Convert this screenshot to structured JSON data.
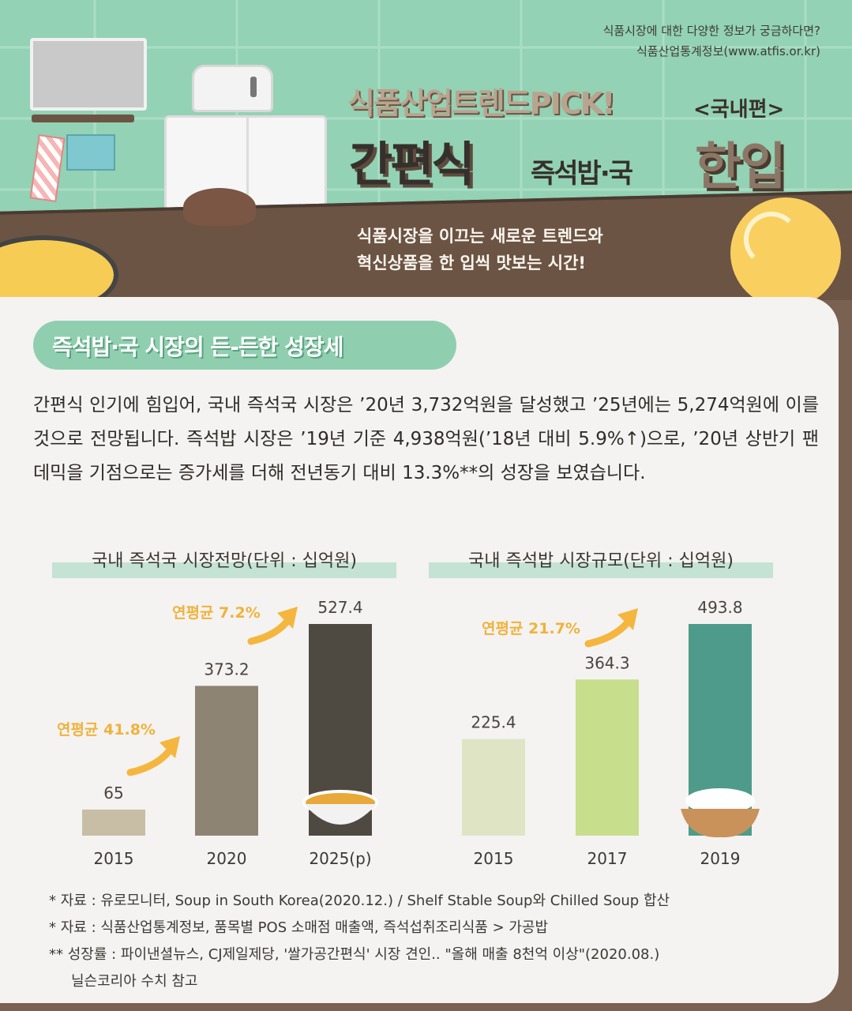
{
  "header": {
    "source_note_line1": "식품시장에 대한 다양한 정보가 궁금하다면?",
    "source_note_line2": "식품산업통계정보(www.atfis.or.kr)",
    "series_title": "식품산업트렌드PICK!",
    "edition": "<국내편>",
    "main_title_1": "간편식",
    "main_title_2": "즉석밥·국",
    "main_title_3": "한입",
    "tagline_line1": "식품시장을 이끄는 새로운 트렌드와",
    "tagline_line2": "혁신상품을 한 입씩 맛보는 시간!"
  },
  "section": {
    "title": "즉석밥·국 시장의 든-든한 성장세",
    "body": "간편식 인기에 힘입어, 국내 즉석국 시장은 ’20년 3,732억원을 달성했고 ’25년에는 5,274억원에 이를 것으로 전망됩니다. 즉석밥 시장은 ’19년 기준 4,938억원(’18년 대비 5.9%↑)으로, ’20년 상반기 팬데믹을 기점으로는 증가세를 더해 전년동기 대비 13.3%**의 성장을 보였습니다."
  },
  "chart_data": [
    {
      "type": "bar",
      "title": "국내 즉석국 시장전망(단위 : 십억원)",
      "categories": [
        "2015",
        "2020",
        "2025(p)"
      ],
      "values": [
        65,
        373.2,
        527.4
      ],
      "value_labels": [
        "65",
        "373.2",
        "527.4"
      ],
      "colors": [
        "#c8bea6",
        "#8e8473",
        "#4f4a41"
      ],
      "annotations": [
        "연평균 41.8%",
        "연평균 7.2%"
      ],
      "ylim": [
        0,
        527.4
      ]
    },
    {
      "type": "bar",
      "title": "국내 즉석밥 시장규모(단위 : 십억원)",
      "categories": [
        "2015",
        "2017",
        "2019"
      ],
      "values": [
        225.4,
        364.3,
        493.8
      ],
      "value_labels": [
        "225.4",
        "364.3",
        "493.8"
      ],
      "colors": [
        "#dfe4c4",
        "#c7de8d",
        "#4e9b8b"
      ],
      "annotations": [
        "연평균 21.7%"
      ],
      "ylim": [
        0,
        493.8
      ]
    }
  ],
  "notes": {
    "line1": "* 자료 : 유로모니터, Soup in South Korea(2020.12.) / Shelf Stable Soup와 Chilled Soup 합산",
    "line2": "* 자료 : 식품산업통계정보, 품목별 POS 소매점 매출액, 즉석섭취조리식품 > 가공밥",
    "line3": "** 성장률 : 파이낸셜뉴스, CJ제일제당, '쌀가공간편식' 시장 견인.. \"올해 매출 8천억 이상\"(2020.08.)",
    "line4": "닐슨코리아 수치 참고"
  }
}
